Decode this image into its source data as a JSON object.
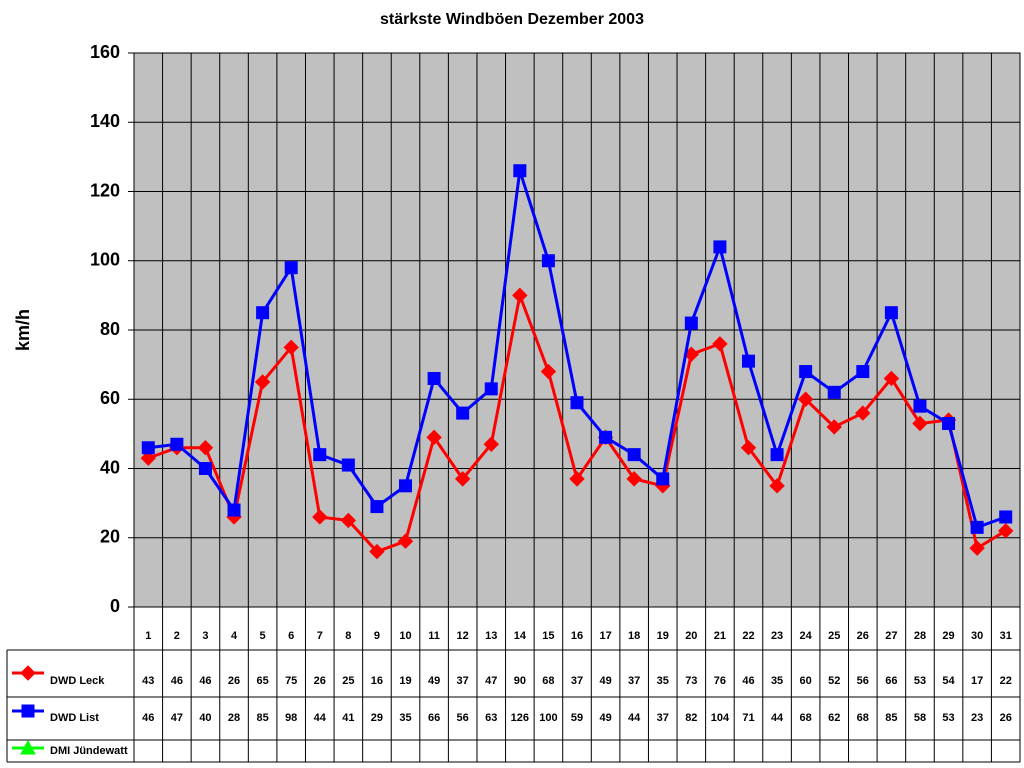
{
  "chart_data": {
    "type": "line",
    "title": "stärkste Windböen Dezember 2003",
    "y_label": "km/h",
    "categories": [
      "1",
      "2",
      "3",
      "4",
      "5",
      "6",
      "7",
      "8",
      "9",
      "10",
      "11",
      "12",
      "13",
      "14",
      "15",
      "16",
      "17",
      "18",
      "19",
      "20",
      "21",
      "22",
      "23",
      "24",
      "25",
      "26",
      "27",
      "28",
      "29",
      "30",
      "31"
    ],
    "series": [
      {
        "name": "DWD Leck",
        "color": "#ff0000",
        "marker": "diamond",
        "values": [
          43,
          46,
          46,
          26,
          65,
          75,
          26,
          25,
          16,
          19,
          49,
          37,
          47,
          90,
          68,
          37,
          49,
          37,
          35,
          73,
          76,
          46,
          35,
          60,
          52,
          56,
          66,
          53,
          54,
          17,
          22
        ]
      },
      {
        "name": "DWD List",
        "color": "#0000ff",
        "marker": "square",
        "values": [
          46,
          47,
          40,
          28,
          85,
          98,
          44,
          41,
          29,
          35,
          66,
          56,
          63,
          126,
          100,
          59,
          49,
          44,
          37,
          82,
          104,
          71,
          44,
          68,
          62,
          68,
          85,
          58,
          53,
          23,
          26
        ]
      },
      {
        "name": "DMI Jündewatt",
        "color": "#00ff00",
        "marker": "triangle",
        "values": [
          null,
          null,
          null,
          null,
          null,
          null,
          null,
          null,
          null,
          null,
          null,
          null,
          null,
          null,
          null,
          null,
          null,
          null,
          null,
          null,
          null,
          null,
          null,
          null,
          null,
          null,
          null,
          null,
          null,
          null,
          null
        ]
      }
    ],
    "ylim": [
      0,
      160
    ],
    "yticks": [
      0,
      20,
      40,
      60,
      80,
      100,
      120,
      140,
      160
    ],
    "grid": true,
    "data_table": true
  }
}
